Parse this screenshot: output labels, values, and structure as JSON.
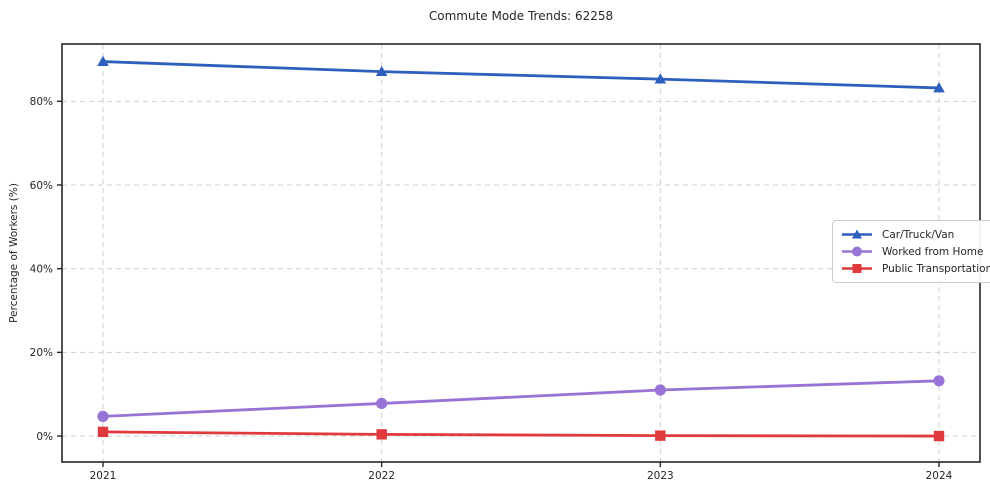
{
  "chart_data": {
    "type": "line",
    "title": "Commute Mode Trends: 62258",
    "xlabel": "",
    "ylabel": "Percentage of Workers (%)",
    "x": [
      "2021",
      "2022",
      "2023",
      "2024"
    ],
    "series": [
      {
        "id": "car-truck-van",
        "name": "Car/Truck/Van",
        "marker": "triangle",
        "color": "#2e5fbe",
        "values": [
          89.5,
          87.1,
          85.3,
          83.2
        ]
      },
      {
        "id": "worked-from-home",
        "name": "Worked from Home",
        "marker": "circle",
        "color": "#9873d6",
        "values": [
          4.7,
          7.8,
          11.0,
          13.2
        ]
      },
      {
        "id": "public-transportation",
        "name": "Public Transportation",
        "marker": "square",
        "color": "#e03a3e",
        "values": [
          1.0,
          0.4,
          0.1,
          0.0
        ]
      }
    ],
    "ytick_values": [
      0,
      20,
      40,
      60,
      80
    ],
    "ytick_labels": [
      "0%",
      "20%",
      "40%",
      "60%",
      "80%"
    ],
    "ylim": [
      -6.2,
      93.7
    ],
    "grid": "dashed",
    "legend_position": "right-middle",
    "colors": {
      "grid": "#cfcfcf",
      "axis": "#262626",
      "text": "#262626",
      "background": "#ffffff"
    }
  }
}
